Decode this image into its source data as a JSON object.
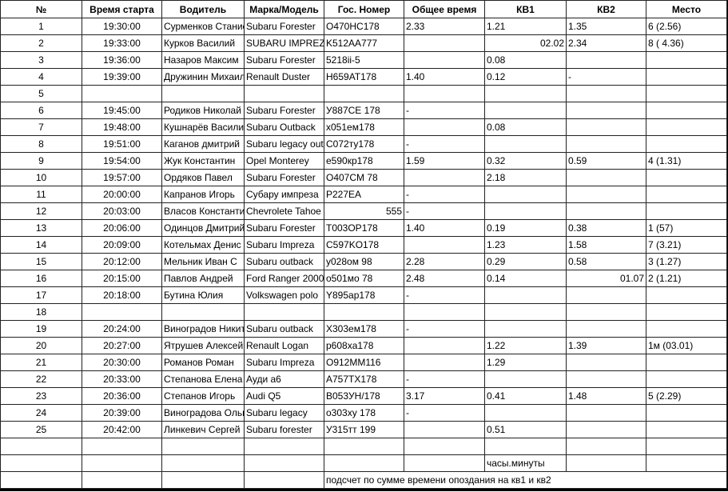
{
  "table": {
    "headers": [
      "№",
      "Время старта",
      "Водитель",
      "Марка/Модель",
      "Гос. Номер",
      "Общее время",
      "КВ1",
      "КВ2",
      "Место"
    ],
    "rows": [
      [
        "1",
        "19:30:00",
        "Сурменков Станислав",
        "Subaru Forester",
        "O470HC178",
        "2.33",
        "1.21",
        "1.35",
        "6 (2.56)"
      ],
      [
        "2",
        "19:33:00",
        "Курков Василий",
        "SUBARU IMPREZA",
        "K512AA777",
        "",
        "02.02",
        "2.34",
        "8 ( 4.36)"
      ],
      [
        "3",
        "19:36:00",
        "Назаров Максим",
        "Subaru Forester",
        "5218ii-5",
        "",
        "0.08",
        "",
        ""
      ],
      [
        "4",
        "19:39:00",
        "Дружинин Михаил",
        "Renault Duster",
        "H659AT178",
        "1.40",
        "0.12",
        "-",
        ""
      ],
      [
        "5",
        "",
        "",
        "",
        "",
        "",
        "",
        "",
        ""
      ],
      [
        "6",
        "19:45:00",
        "Родиков Николай",
        "Subaru Forester",
        "У887СЕ 178",
        "-",
        "",
        "",
        ""
      ],
      [
        "7",
        "19:48:00",
        "Кушнарёв Василий",
        "Subaru Outback",
        "x051ем178",
        "",
        "0.08",
        "",
        ""
      ],
      [
        "8",
        "19:51:00",
        "Каганов дмитрий",
        "Subaru legacy outback",
        "C072ту178",
        "-",
        "",
        "",
        ""
      ],
      [
        "9",
        "19:54:00",
        "Жук Константин",
        "Opel Monterey",
        "е590кр178",
        "1.59",
        "0.32",
        "0.59",
        "4 (1.31)"
      ],
      [
        "10",
        "19:57:00",
        "Ордяков Павел",
        "Subaru Forester",
        "O407CM 78",
        "",
        "2.18",
        "",
        ""
      ],
      [
        "11",
        "20:00:00",
        "Капранов Игорь",
        "Субару импреза",
        "P227EA",
        "-",
        "",
        "",
        ""
      ],
      [
        "12",
        "20:03:00",
        "Власов Константин",
        "Chevrolete Tahoe",
        "555",
        "-",
        "",
        "",
        ""
      ],
      [
        "13",
        "20:06:00",
        "Одинцов Дмитрий",
        "Subaru Forester",
        "T003OP178",
        "1.40",
        "0.19",
        "0.38",
        "1 (57)"
      ],
      [
        "14",
        "20:09:00",
        "Котельмах Денис",
        "Subaru Impreza",
        "C597KO178",
        "",
        "1.23",
        "1.58",
        "7 (3.21)"
      ],
      [
        "15",
        "20:12:00",
        "Мельник Иван С",
        "Subaru outback",
        "у028ом 98",
        "2.28",
        "0.29",
        "0.58",
        "3 (1.27)"
      ],
      [
        "16",
        "20:15:00",
        "Павлов Андрей",
        "Ford Ranger 2000",
        "о501мо 78",
        "2.48",
        "0.14",
        "01.07",
        "2 (1.21)"
      ],
      [
        "17",
        "20:18:00",
        "Бутина Юлия",
        "Volkswagen polo",
        "Y895ap178",
        "-",
        "",
        "",
        ""
      ],
      [
        "18",
        "",
        "",
        "",
        "",
        "",
        "",
        "",
        ""
      ],
      [
        "19",
        "20:24:00",
        "Виноградов Никита",
        "Subaru outback",
        "X303ем178",
        "-",
        "",
        "",
        ""
      ],
      [
        "20",
        "20:27:00",
        "Ятрушев Алексей",
        "Renault Logan",
        "p608xa178",
        "",
        "1.22",
        "1.39",
        "1м (03.01)"
      ],
      [
        "21",
        "20:30:00",
        "Романов Роман",
        "Subaru Impreza",
        "O912MM116",
        "",
        "1.29",
        "",
        ""
      ],
      [
        "22",
        "20:33:00",
        "Степанова Елена",
        "Ауди а6",
        "A757TX178",
        "-",
        "",
        "",
        ""
      ],
      [
        "23",
        "20:36:00",
        "Степанов Игорь",
        "Audi Q5",
        "B053УH/178",
        "3.17",
        "0.41",
        "1.48",
        "5 (2.29)"
      ],
      [
        "24",
        "20:39:00",
        "Виноградова Ольга",
        "Subaru legacy",
        "о303ху 178",
        "-",
        "",
        "",
        ""
      ],
      [
        "25",
        "20:42:00",
        "Линкевич Сергей",
        "Subaru forester",
        "У315тт 199",
        "",
        "0.51",
        "",
        ""
      ],
      [
        "",
        "",
        "",
        "",
        "",
        "",
        "",
        "",
        ""
      ],
      [
        "",
        "",
        "",
        "",
        "",
        "",
        "часы.минуты",
        "",
        ""
      ]
    ],
    "footer_note": "подсчет по сумме времени опоздания на кв1 и кв2"
  }
}
